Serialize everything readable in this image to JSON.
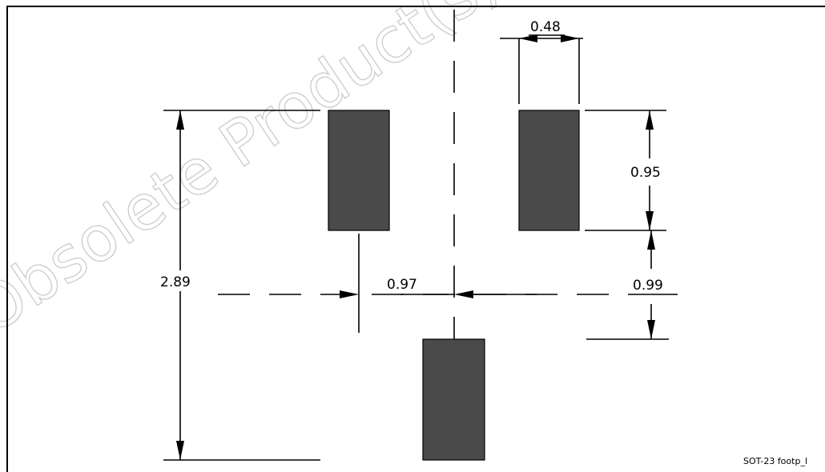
{
  "watermark": "Obsolete Product(s) - Obsolete Product(s)",
  "caption": "SOT-23 footp_l",
  "dimensions": {
    "pad_width": "0.48",
    "pad_length": "0.95",
    "overall_height": "2.89",
    "pad_gap_x": "0.97",
    "pad_gap_y": "0.99"
  },
  "colors": {
    "pad_fill": "#4a4a4a",
    "line": "#000000",
    "watermark": "#cfcfcf"
  }
}
